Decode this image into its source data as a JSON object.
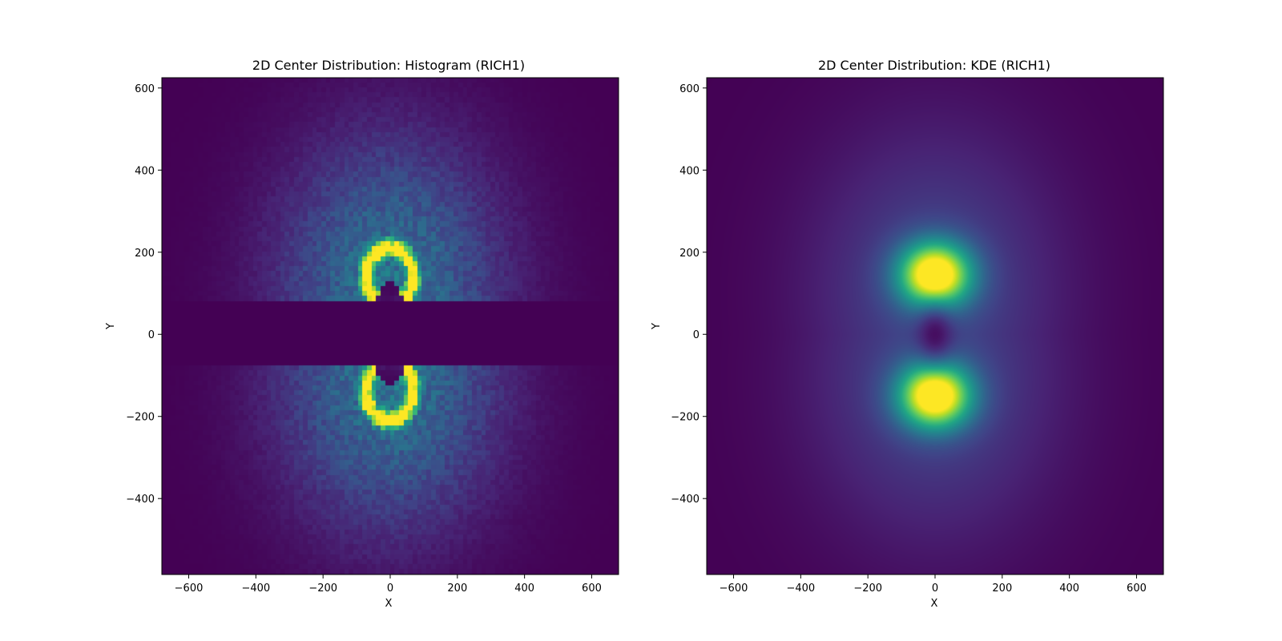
{
  "chart_data": [
    {
      "type": "heatmap",
      "title": "2D Center Distribution: Histogram (RICH1)",
      "xlabel": "X",
      "ylabel": "Y",
      "xlim": [
        -680,
        680
      ],
      "ylim": [
        -585,
        625
      ],
      "xticks": [
        -600,
        -400,
        -200,
        0,
        200,
        400,
        600
      ],
      "yticks": [
        -400,
        -200,
        0,
        200,
        400,
        600
      ],
      "xtick_labels": [
        "−600",
        "−400",
        "−200",
        "0",
        "200",
        "400",
        "600"
      ],
      "ytick_labels": [
        "−400",
        "−200",
        "0",
        "200",
        "400",
        "600"
      ],
      "colormap": "viridis",
      "grid": false,
      "bins": 100,
      "empty_band_y": [
        -75,
        78
      ],
      "inner_gap": {
        "x": [
          -50,
          50
        ],
        "y": [
          -130,
          130
        ]
      },
      "peaks": [
        {
          "x": 0,
          "y": 140,
          "ring_radius": 70,
          "level": 1.0
        },
        {
          "x": 0,
          "y": -140,
          "ring_radius": 70,
          "level": 1.0
        }
      ],
      "spread": {
        "sigma_x": 230,
        "sigma_y": 250
      }
    },
    {
      "type": "heatmap",
      "title": "2D Center Distribution: KDE (RICH1)",
      "xlabel": "X",
      "ylabel": "Y",
      "xlim": [
        -680,
        680
      ],
      "ylim": [
        -585,
        625
      ],
      "xticks": [
        -600,
        -400,
        -200,
        0,
        200,
        400,
        600
      ],
      "yticks": [
        -400,
        -200,
        0,
        200,
        400,
        600
      ],
      "xtick_labels": [
        "−600",
        "−400",
        "−200",
        "0",
        "200",
        "400",
        "600"
      ],
      "ytick_labels": [
        "−400",
        "−200",
        "0",
        "200",
        "400",
        "600"
      ],
      "colormap": "viridis",
      "grid": false,
      "peaks": [
        {
          "x": 0,
          "y": 145,
          "level": 1.0
        },
        {
          "x": 0,
          "y": -150,
          "level": 1.0
        }
      ],
      "minimum": {
        "x": 0,
        "y": 0
      },
      "spread": {
        "sigma_x": 260,
        "sigma_y": 280
      }
    }
  ]
}
